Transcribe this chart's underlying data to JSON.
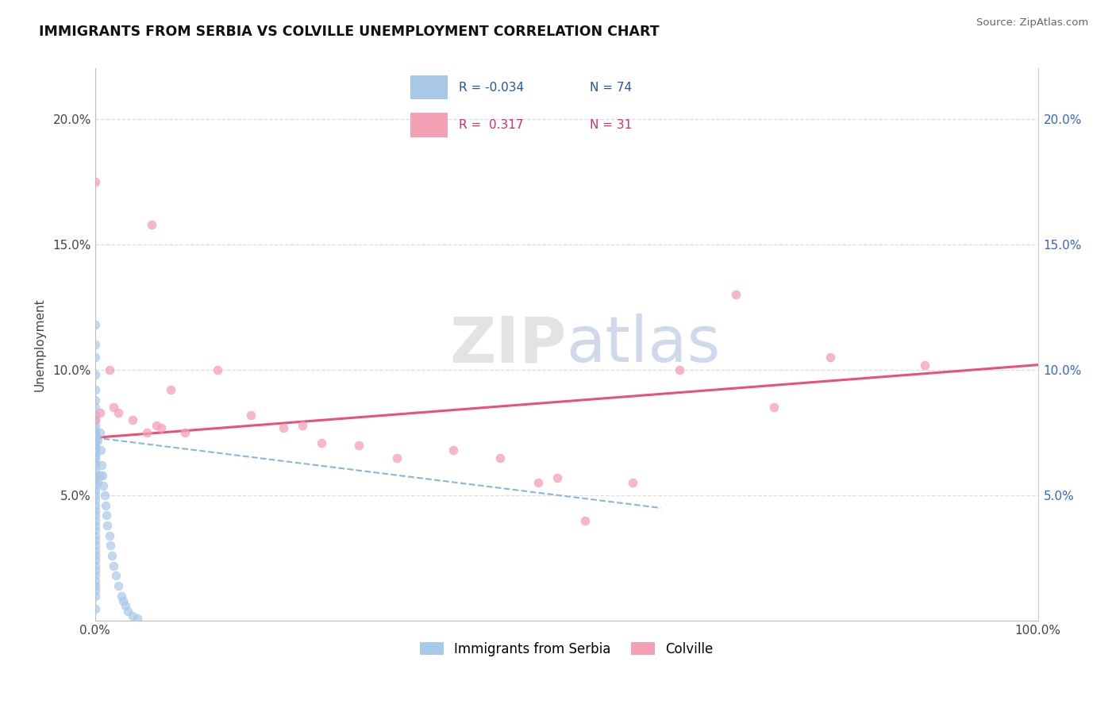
{
  "title": "IMMIGRANTS FROM SERBIA VS COLVILLE UNEMPLOYMENT CORRELATION CHART",
  "source": "Source: ZipAtlas.com",
  "ylabel": "Unemployment",
  "y_ticks": [
    0.05,
    0.1,
    0.15,
    0.2
  ],
  "y_tick_labels": [
    "5.0%",
    "10.0%",
    "15.0%",
    "20.0%"
  ],
  "x_range": [
    0.0,
    1.0
  ],
  "y_range": [
    0.0,
    0.22
  ],
  "color_blue": "#a8c8e8",
  "color_pink": "#f4a0b5",
  "color_blue_line": "#7ab0d8",
  "color_pink_line": "#e8527a",
  "watermark_zip": "ZIP",
  "watermark_atlas": "atlas",
  "blue_scatter_x": [
    0.0,
    0.0,
    0.0,
    0.0,
    0.0,
    0.0,
    0.0,
    0.0,
    0.0,
    0.0,
    0.0,
    0.0,
    0.0,
    0.0,
    0.0,
    0.0,
    0.0,
    0.0,
    0.0,
    0.0,
    0.0,
    0.0,
    0.0,
    0.0,
    0.0,
    0.0,
    0.0,
    0.0,
    0.0,
    0.0,
    0.0,
    0.0,
    0.0,
    0.0,
    0.0,
    0.0,
    0.0,
    0.0,
    0.0,
    0.0,
    0.0,
    0.0,
    0.0,
    0.0,
    0.0,
    0.0,
    0.0,
    0.0,
    0.0,
    0.0,
    0.003,
    0.003,
    0.005,
    0.005,
    0.006,
    0.007,
    0.008,
    0.009,
    0.01,
    0.011,
    0.012,
    0.013,
    0.015,
    0.016,
    0.018,
    0.02,
    0.022,
    0.025,
    0.028,
    0.03,
    0.032,
    0.035,
    0.04,
    0.045
  ],
  "blue_scatter_y": [
    0.118,
    0.11,
    0.105,
    0.098,
    0.092,
    0.088,
    0.085,
    0.082,
    0.08,
    0.078,
    0.076,
    0.075,
    0.073,
    0.072,
    0.071,
    0.07,
    0.069,
    0.068,
    0.067,
    0.066,
    0.065,
    0.063,
    0.062,
    0.06,
    0.058,
    0.056,
    0.054,
    0.052,
    0.05,
    0.048,
    0.046,
    0.044,
    0.042,
    0.04,
    0.038,
    0.036,
    0.034,
    0.032,
    0.03,
    0.028,
    0.026,
    0.024,
    0.022,
    0.02,
    0.018,
    0.016,
    0.014,
    0.012,
    0.01,
    0.005,
    0.072,
    0.055,
    0.075,
    0.058,
    0.068,
    0.062,
    0.058,
    0.054,
    0.05,
    0.046,
    0.042,
    0.038,
    0.034,
    0.03,
    0.026,
    0.022,
    0.018,
    0.014,
    0.01,
    0.008,
    0.006,
    0.004,
    0.002,
    0.001
  ],
  "pink_scatter_x": [
    0.0,
    0.0,
    0.005,
    0.015,
    0.02,
    0.025,
    0.04,
    0.055,
    0.06,
    0.065,
    0.07,
    0.08,
    0.095,
    0.13,
    0.165,
    0.2,
    0.22,
    0.24,
    0.28,
    0.32,
    0.38,
    0.43,
    0.47,
    0.49,
    0.52,
    0.57,
    0.62,
    0.68,
    0.72,
    0.78,
    0.88
  ],
  "pink_scatter_y": [
    0.175,
    0.08,
    0.083,
    0.1,
    0.085,
    0.083,
    0.08,
    0.075,
    0.158,
    0.078,
    0.077,
    0.092,
    0.075,
    0.1,
    0.082,
    0.077,
    0.078,
    0.071,
    0.07,
    0.065,
    0.068,
    0.065,
    0.055,
    0.057,
    0.04,
    0.055,
    0.1,
    0.13,
    0.085,
    0.105,
    0.102
  ],
  "blue_trend_start_y": 0.073,
  "blue_trend_end_y": 0.045,
  "blue_trend_end_x": 0.6,
  "pink_trend_start_y": 0.073,
  "pink_trend_end_y": 0.102
}
